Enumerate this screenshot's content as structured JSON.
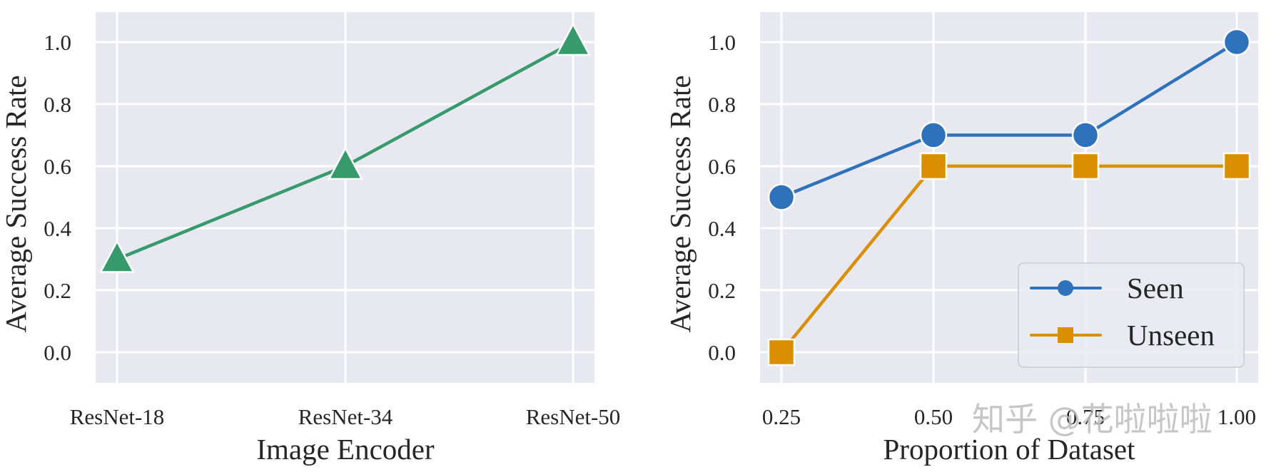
{
  "chart_data": [
    {
      "type": "line",
      "title": "",
      "xlabel": "Image Encoder",
      "ylabel": "Average Success Rate",
      "categories": [
        "ResNet-18",
        "ResNet-34",
        "ResNet-50"
      ],
      "series": [
        {
          "name": "Average Success Rate",
          "values": [
            0.3,
            0.6,
            1.0
          ],
          "color": "#379a6c",
          "marker": "triangle"
        }
      ],
      "yticks": [
        "0.0",
        "0.2",
        "0.4",
        "0.6",
        "0.8",
        "1.0"
      ],
      "ylim": [
        -0.095,
        1.095
      ],
      "grid": true,
      "legend": null
    },
    {
      "type": "line",
      "title": "",
      "xlabel": "Proportion of Dataset",
      "ylabel": "Average Success Rate",
      "categories": [
        "0.25",
        "0.50",
        "0.75",
        "1.00"
      ],
      "x": [
        0.25,
        0.5,
        0.75,
        1.0
      ],
      "series": [
        {
          "name": "Seen",
          "values": [
            0.5,
            0.7,
            0.7,
            1.0
          ],
          "color": "#2e72bb",
          "marker": "circle"
        },
        {
          "name": "Unseen",
          "values": [
            0.0,
            0.6,
            0.6,
            0.6
          ],
          "color": "#d98f00",
          "marker": "square"
        }
      ],
      "yticks": [
        "0.0",
        "0.2",
        "0.4",
        "0.6",
        "0.8",
        "1.0"
      ],
      "ylim": [
        -0.095,
        1.095
      ],
      "grid": true,
      "legend": {
        "position": "lower right",
        "entries": [
          "Seen",
          "Unseen"
        ]
      }
    }
  ],
  "left_plot": {
    "ylabel": "Average Success Rate",
    "xlabel": "Image Encoder",
    "xticks": [
      "ResNet-18",
      "ResNet-34",
      "ResNet-50"
    ],
    "yticks": [
      "0.0",
      "0.2",
      "0.4",
      "0.6",
      "0.8",
      "1.0"
    ]
  },
  "right_plot": {
    "ylabel": "Average Success Rate",
    "xlabel": "Proportion of Dataset",
    "xticks": [
      "0.25",
      "0.50",
      "0.75",
      "1.00"
    ],
    "yticks": [
      "0.0",
      "0.2",
      "0.4",
      "0.6",
      "0.8",
      "1.0"
    ],
    "legend": {
      "seen": "Seen",
      "unseen": "Unseen"
    }
  },
  "watermark": "知乎 @花啦啦啦",
  "colors": {
    "plot_bg": "#e8e8f0",
    "grid": "#ffffff",
    "green": "#379a6c",
    "blue": "#2e72bb",
    "orange": "#d98f00"
  }
}
